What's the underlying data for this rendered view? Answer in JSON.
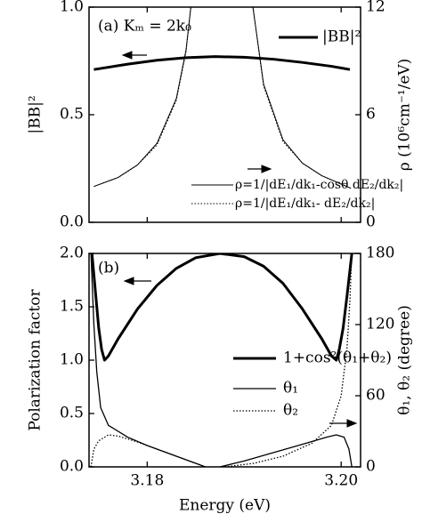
{
  "chart_data": [
    {
      "type": "line",
      "annotation": "(a) Kₘ = 2k₀",
      "ylabel": "|BB|²",
      "y2label": "ρ (10⁶cm⁻¹/eV)",
      "xlim": [
        3.174,
        3.202
      ],
      "ylim": [
        0,
        1
      ],
      "y2lim": [
        0,
        12
      ],
      "yticks": [
        {
          "value": 0,
          "label": "0.0"
        },
        0.5,
        {
          "value": 1,
          "label": "1.0"
        }
      ],
      "y2ticks": [
        0,
        6,
        12
      ],
      "series": [
        {
          "name": "|BB|²",
          "color": "#000000",
          "linewidth": 3,
          "style": "solid",
          "x": [
            3.1745,
            3.178,
            3.181,
            3.184,
            3.187,
            3.19,
            3.193,
            3.196,
            3.199,
            3.2009
          ],
          "values": [
            0.71,
            0.735,
            0.753,
            0.765,
            0.77,
            0.767,
            0.758,
            0.743,
            0.725,
            0.71
          ]
        },
        {
          "name": "ρ=1/|dE₁/dk₁-cosθ dE₂/dk₂|",
          "color": "#000000",
          "linewidth": 1,
          "style": "solid",
          "axis": "y2",
          "x": [
            3.1745,
            3.177,
            3.179,
            3.181,
            3.183,
            3.184,
            3.1845,
            3.1877,
            3.1909,
            3.192,
            3.194,
            3.196,
            3.198,
            3.201
          ],
          "values": [
            2.0,
            2.5,
            3.2,
            4.4,
            6.9,
            9.6,
            12,
            null,
            12,
            7.7,
            4.6,
            3.3,
            2.6,
            1.9
          ]
        },
        {
          "name": "ρ=1/|dE₁/dk₁- dE₂/dk₂|",
          "color": "#000000",
          "linewidth": 1,
          "style": "dotted",
          "axis": "y2",
          "x": [
            3.1745,
            3.177,
            3.179,
            3.181,
            3.183,
            3.184,
            3.1845,
            3.1877,
            3.1909,
            3.192,
            3.194,
            3.196,
            3.198,
            3.201
          ],
          "values": [
            2.0,
            2.5,
            3.2,
            4.3,
            6.8,
            9.5,
            12,
            null,
            12,
            7.6,
            4.5,
            3.3,
            2.6,
            1.9
          ]
        }
      ]
    },
    {
      "type": "line",
      "annotation": "(b)",
      "xlabel": "Energy (eV)",
      "ylabel": "Polarization factor",
      "y2label": "θ₁, θ₂ (degree)",
      "xlim": [
        3.174,
        3.202
      ],
      "ylim": [
        0,
        2
      ],
      "y2lim": [
        0,
        180
      ],
      "xticks": [
        3.18,
        {
          "value": 3.2,
          "label": "3.20"
        }
      ],
      "yticks": [
        {
          "value": 0,
          "label": "0.0"
        },
        0.5,
        {
          "value": 1,
          "label": "1.0"
        },
        1.5,
        {
          "value": 2,
          "label": "2.0"
        }
      ],
      "y2ticks": [
        0,
        60,
        120,
        180
      ],
      "series": [
        {
          "name": "1+cos²(θ₁+θ₂)",
          "color": "#000000",
          "linewidth": 3,
          "style": "solid",
          "x": [
            3.1743,
            3.1747,
            3.175,
            3.1753,
            3.1756,
            3.176,
            3.177,
            3.179,
            3.181,
            3.183,
            3.185,
            3.1875,
            3.19,
            3.192,
            3.194,
            3.196,
            3.198,
            3.199,
            3.1995,
            3.1998,
            3.2002,
            3.2006,
            3.2011
          ],
          "values": [
            2.0,
            1.6,
            1.3,
            1.1,
            1.0,
            1.04,
            1.2,
            1.48,
            1.7,
            1.86,
            1.96,
            2.0,
            1.97,
            1.88,
            1.72,
            1.48,
            1.2,
            1.04,
            1.0,
            1.1,
            1.3,
            1.6,
            2.0
          ]
        },
        {
          "name": "θ₁",
          "color": "#000000",
          "linewidth": 1.3,
          "style": "solid",
          "axis": "y2",
          "x": [
            3.1742,
            3.1745,
            3.1748,
            3.1752,
            3.176,
            3.178,
            3.18,
            3.182,
            3.184,
            3.186,
            3.187,
            3.1875,
            3.19,
            3.193,
            3.196,
            3.1985,
            3.1995,
            3.2003,
            3.2008,
            3.2011
          ],
          "values": [
            180,
            120,
            80,
            50,
            35,
            25,
            18,
            12,
            6,
            0,
            null,
            0,
            5,
            12,
            19,
            25,
            27,
            25,
            15,
            0
          ]
        },
        {
          "name": "θ₂",
          "color": "#000000",
          "linewidth": 1.3,
          "style": "dotted",
          "axis": "y2",
          "x": [
            3.1742,
            3.1745,
            3.175,
            3.176,
            3.177,
            3.179,
            3.181,
            3.183,
            3.185,
            3.186,
            3.187,
            3.188,
            3.191,
            3.194,
            3.197,
            3.199,
            3.2,
            3.2006,
            3.2009,
            3.2011
          ],
          "values": [
            0,
            15,
            22,
            27,
            26,
            21,
            15,
            9,
            3,
            0,
            null,
            0,
            3,
            9,
            20,
            35,
            60,
            100,
            140,
            180
          ]
        }
      ]
    }
  ]
}
